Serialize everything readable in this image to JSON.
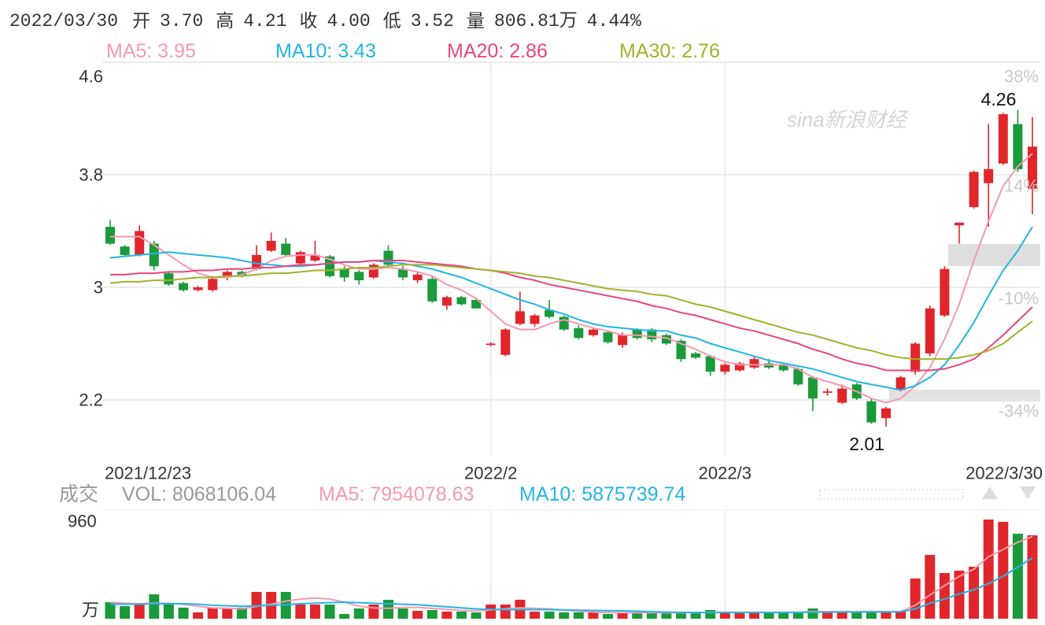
{
  "header": {
    "date": "2022/03/30",
    "fields": [
      {
        "label": "开",
        "value": "3.70",
        "color": "#1a9a3a"
      },
      {
        "label": "高",
        "value": "4.21",
        "color": "#e0262b"
      },
      {
        "label": "收",
        "value": "4.00",
        "color": "#e0262b"
      },
      {
        "label": "低",
        "value": "3.52",
        "color": "#1a9a3a"
      },
      {
        "label": "量",
        "value": "806.81万",
        "color": "#333333"
      }
    ],
    "change": "4.44%",
    "change_color": "#e0262b"
  },
  "chart_data": [
    {
      "type": "candlestick",
      "categories": [
        "2021/12/23",
        null,
        null,
        null,
        null,
        null,
        null,
        null,
        null,
        null,
        null,
        null,
        null,
        null,
        null,
        null,
        null,
        null,
        null,
        null,
        null,
        null,
        null,
        null,
        null,
        null,
        "2022/2",
        null,
        null,
        null,
        null,
        null,
        null,
        null,
        null,
        null,
        null,
        null,
        null,
        null,
        null,
        null,
        "2022/3",
        null,
        null,
        null,
        null,
        null,
        null,
        null,
        null,
        null,
        null,
        null,
        null,
        null,
        null,
        null,
        null,
        null,
        null,
        null,
        null,
        "2022/3/30"
      ],
      "open": [
        3.43,
        3.29,
        3.23,
        3.31,
        3.1,
        3.03,
        2.98,
        2.98,
        3.07,
        3.11,
        3.13,
        3.26,
        3.31,
        3.17,
        3.19,
        3.22,
        3.13,
        3.11,
        3.07,
        3.26,
        3.13,
        3.05,
        3.06,
        2.87,
        2.93,
        2.91,
        2.59,
        2.52,
        2.74,
        2.74,
        2.84,
        2.79,
        2.71,
        2.66,
        2.68,
        2.59,
        2.7,
        2.7,
        2.66,
        2.62,
        2.53,
        2.51,
        2.4,
        2.41,
        2.43,
        2.46,
        2.45,
        2.42,
        2.36,
        2.25,
        2.18,
        2.31,
        2.19,
        2.07,
        2.27,
        2.4,
        2.53,
        2.8,
        3.44,
        3.57,
        3.74,
        3.88,
        4.16,
        3.7
      ],
      "high": [
        3.48,
        3.3,
        3.44,
        3.33,
        3.11,
        3.04,
        3.01,
        3.08,
        3.12,
        3.12,
        3.3,
        3.39,
        3.35,
        3.26,
        3.33,
        3.23,
        3.15,
        3.12,
        3.17,
        3.3,
        3.15,
        3.11,
        3.08,
        2.94,
        2.94,
        2.92,
        2.61,
        2.71,
        2.97,
        2.81,
        2.91,
        2.8,
        2.73,
        2.71,
        2.69,
        2.68,
        2.71,
        2.71,
        2.67,
        2.63,
        2.54,
        2.52,
        2.46,
        2.47,
        2.51,
        2.49,
        2.46,
        2.43,
        2.37,
        2.28,
        2.31,
        2.32,
        2.21,
        2.15,
        2.37,
        2.61,
        2.87,
        3.15,
        3.46,
        3.83,
        4.16,
        4.24,
        4.26,
        4.21
      ],
      "low": [
        3.3,
        3.22,
        3.22,
        3.12,
        3.01,
        2.97,
        2.97,
        2.97,
        3.05,
        3.07,
        3.12,
        3.25,
        3.22,
        3.16,
        3.18,
        3.07,
        3.04,
        3.02,
        3.06,
        3.15,
        3.05,
        3.03,
        2.89,
        2.84,
        2.87,
        2.85,
        2.58,
        2.51,
        2.73,
        2.72,
        2.78,
        2.69,
        2.63,
        2.65,
        2.6,
        2.57,
        2.63,
        2.61,
        2.59,
        2.47,
        2.49,
        2.37,
        2.38,
        2.4,
        2.42,
        2.42,
        2.4,
        2.3,
        2.12,
        2.23,
        2.17,
        2.2,
        2.03,
        2.01,
        2.26,
        2.38,
        2.51,
        2.79,
        3.31,
        3.56,
        3.43,
        3.87,
        3.82,
        3.52
      ],
      "close": [
        3.31,
        3.23,
        3.4,
        3.15,
        3.02,
        2.98,
        3.0,
        3.06,
        3.11,
        3.08,
        3.23,
        3.33,
        3.23,
        3.25,
        3.23,
        3.08,
        3.07,
        3.05,
        3.16,
        3.16,
        3.07,
        3.09,
        2.9,
        2.93,
        2.88,
        2.85,
        2.6,
        2.7,
        2.83,
        2.8,
        2.79,
        2.7,
        2.64,
        2.7,
        2.61,
        2.66,
        2.64,
        2.63,
        2.6,
        2.49,
        2.5,
        2.4,
        2.45,
        2.46,
        2.49,
        2.43,
        2.41,
        2.31,
        2.21,
        2.26,
        2.28,
        2.21,
        2.04,
        2.14,
        2.36,
        2.6,
        2.85,
        3.13,
        3.46,
        3.82,
        3.84,
        4.23,
        3.84,
        4.0
      ],
      "up_color": "#e0262b",
      "down_color": "#1a9a3a",
      "ylim": [
        1.8,
        4.6
      ],
      "yticks": [
        4.6,
        3.8,
        3,
        2.2
      ],
      "y2lim": [
        -46,
        38
      ],
      "y2ticks": [
        {
          "value": 38,
          "label": "38%"
        },
        {
          "value": 14,
          "label": "14%"
        },
        {
          "value": -10,
          "label": "-10%"
        },
        {
          "value": -34,
          "label": "-34%"
        }
      ],
      "grid": true,
      "series": [
        {
          "name": "MA5: 3.95",
          "color": "#f49ab0",
          "values": [
            3.36,
            3.36,
            3.36,
            3.3,
            3.23,
            3.16,
            3.1,
            3.07,
            3.07,
            3.09,
            3.13,
            3.19,
            3.22,
            3.23,
            3.23,
            3.2,
            3.16,
            3.13,
            3.13,
            3.14,
            3.13,
            3.11,
            3.08,
            3.02,
            2.98,
            2.92,
            2.83,
            2.74,
            2.7,
            2.7,
            2.74,
            2.77,
            2.74,
            2.71,
            2.69,
            2.66,
            2.66,
            2.65,
            2.64,
            2.6,
            2.56,
            2.51,
            2.47,
            2.45,
            2.45,
            2.45,
            2.45,
            2.42,
            2.36,
            2.33,
            2.3,
            2.26,
            2.21,
            2.18,
            2.21,
            2.3,
            2.43,
            2.63,
            2.88,
            3.19,
            3.47,
            3.72,
            3.86,
            3.95
          ]
        },
        {
          "name": "MA10: 3.43",
          "color": "#22b5e6",
          "values": [
            3.21,
            3.22,
            3.23,
            3.24,
            3.25,
            3.24,
            3.23,
            3.22,
            3.21,
            3.19,
            3.17,
            3.16,
            3.15,
            3.15,
            3.16,
            3.17,
            3.18,
            3.18,
            3.19,
            3.18,
            3.17,
            3.15,
            3.13,
            3.1,
            3.07,
            3.03,
            2.99,
            2.95,
            2.91,
            2.88,
            2.84,
            2.81,
            2.77,
            2.74,
            2.72,
            2.71,
            2.7,
            2.69,
            2.69,
            2.66,
            2.64,
            2.6,
            2.57,
            2.54,
            2.51,
            2.48,
            2.46,
            2.44,
            2.42,
            2.39,
            2.36,
            2.33,
            2.31,
            2.29,
            2.27,
            2.3,
            2.36,
            2.45,
            2.59,
            2.75,
            2.94,
            3.12,
            3.26,
            3.43
          ]
        },
        {
          "name": "MA20: 2.86",
          "color": "#e9457f",
          "values": [
            3.09,
            3.09,
            3.1,
            3.1,
            3.11,
            3.11,
            3.12,
            3.12,
            3.13,
            3.13,
            3.14,
            3.14,
            3.15,
            3.16,
            3.16,
            3.17,
            3.18,
            3.18,
            3.19,
            3.19,
            3.19,
            3.18,
            3.17,
            3.16,
            3.15,
            3.13,
            3.12,
            3.1,
            3.07,
            3.05,
            3.02,
            3.0,
            2.98,
            2.96,
            2.94,
            2.92,
            2.9,
            2.87,
            2.85,
            2.82,
            2.8,
            2.77,
            2.74,
            2.71,
            2.69,
            2.66,
            2.63,
            2.6,
            2.56,
            2.53,
            2.49,
            2.46,
            2.44,
            2.41,
            2.41,
            2.41,
            2.41,
            2.42,
            2.45,
            2.49,
            2.57,
            2.66,
            2.76,
            2.86
          ]
        },
        {
          "name": "MA30: 2.76",
          "color": "#a2b12a",
          "values": [
            3.03,
            3.04,
            3.04,
            3.05,
            3.05,
            3.06,
            3.07,
            3.07,
            3.08,
            3.08,
            3.09,
            3.1,
            3.1,
            3.11,
            3.12,
            3.12,
            3.13,
            3.14,
            3.14,
            3.15,
            3.16,
            3.16,
            3.16,
            3.15,
            3.14,
            3.13,
            3.12,
            3.11,
            3.1,
            3.08,
            3.07,
            3.05,
            3.03,
            3.01,
            2.99,
            2.98,
            2.97,
            2.95,
            2.94,
            2.91,
            2.88,
            2.86,
            2.83,
            2.8,
            2.77,
            2.74,
            2.71,
            2.68,
            2.66,
            2.63,
            2.6,
            2.57,
            2.55,
            2.52,
            2.5,
            2.49,
            2.49,
            2.49,
            2.5,
            2.52,
            2.55,
            2.6,
            2.68,
            2.76
          ]
        }
      ],
      "annotations": [
        {
          "value": 4.26,
          "label": "4.26"
        },
        {
          "value": 2.01,
          "label": "2.01"
        }
      ],
      "watermark": "sina新浪财经"
    },
    {
      "type": "bar",
      "title": "成交",
      "series": [
        {
          "name": "VOL: 8068106.04",
          "color": "#999999",
          "values": [
            160,
            122,
            137,
            236,
            137,
            107,
            61,
            107,
            107,
            107,
            259,
            259,
            259,
            137,
            137,
            137,
            46,
            99,
            137,
            183,
            99,
            76,
            84,
            69,
            69,
            61,
            137,
            137,
            183,
            69,
            69,
            61,
            61,
            61,
            46,
            61,
            61,
            61,
            61,
            61,
            61,
            84,
            61,
            61,
            61,
            61,
            61,
            61,
            99,
            61,
            61,
            61,
            76,
            61,
            76,
            389,
            617,
            442,
            465,
            503,
            960,
            937,
            823,
            806.81
          ]
        },
        {
          "name": "MA5: 7954078.63",
          "color": "#f49ab0",
          "type": "line",
          "values": [
            160,
            150,
            145,
            150,
            150,
            140,
            120,
            105,
            100,
            95,
            120,
            140,
            170,
            190,
            200,
            190,
            160,
            120,
            105,
            100,
            110,
            110,
            100,
            90,
            80,
            75,
            85,
            95,
            105,
            100,
            95,
            85,
            70,
            65,
            60,
            58,
            58,
            58,
            58,
            58,
            58,
            62,
            62,
            62,
            62,
            62,
            62,
            62,
            70,
            68,
            68,
            68,
            70,
            68,
            70,
            130,
            230,
            320,
            410,
            480,
            600,
            670,
            740,
            795.41
          ]
        },
        {
          "name": "MA10: 5875739.74",
          "color": "#22b5e6",
          "type": "line",
          "values": [
            140,
            140,
            140,
            145,
            145,
            145,
            140,
            130,
            125,
            120,
            125,
            130,
            135,
            145,
            150,
            155,
            160,
            155,
            150,
            145,
            140,
            135,
            125,
            115,
            105,
            95,
            90,
            88,
            88,
            88,
            88,
            85,
            82,
            80,
            78,
            76,
            72,
            68,
            64,
            62,
            60,
            60,
            60,
            60,
            60,
            60,
            60,
            62,
            64,
            64,
            65,
            65,
            66,
            66,
            66,
            95,
            150,
            190,
            240,
            280,
            340,
            410,
            500,
            587.57
          ]
        }
      ],
      "ylim": [
        0,
        960
      ],
      "yticks": [
        960
      ],
      "unit": "万"
    }
  ]
}
